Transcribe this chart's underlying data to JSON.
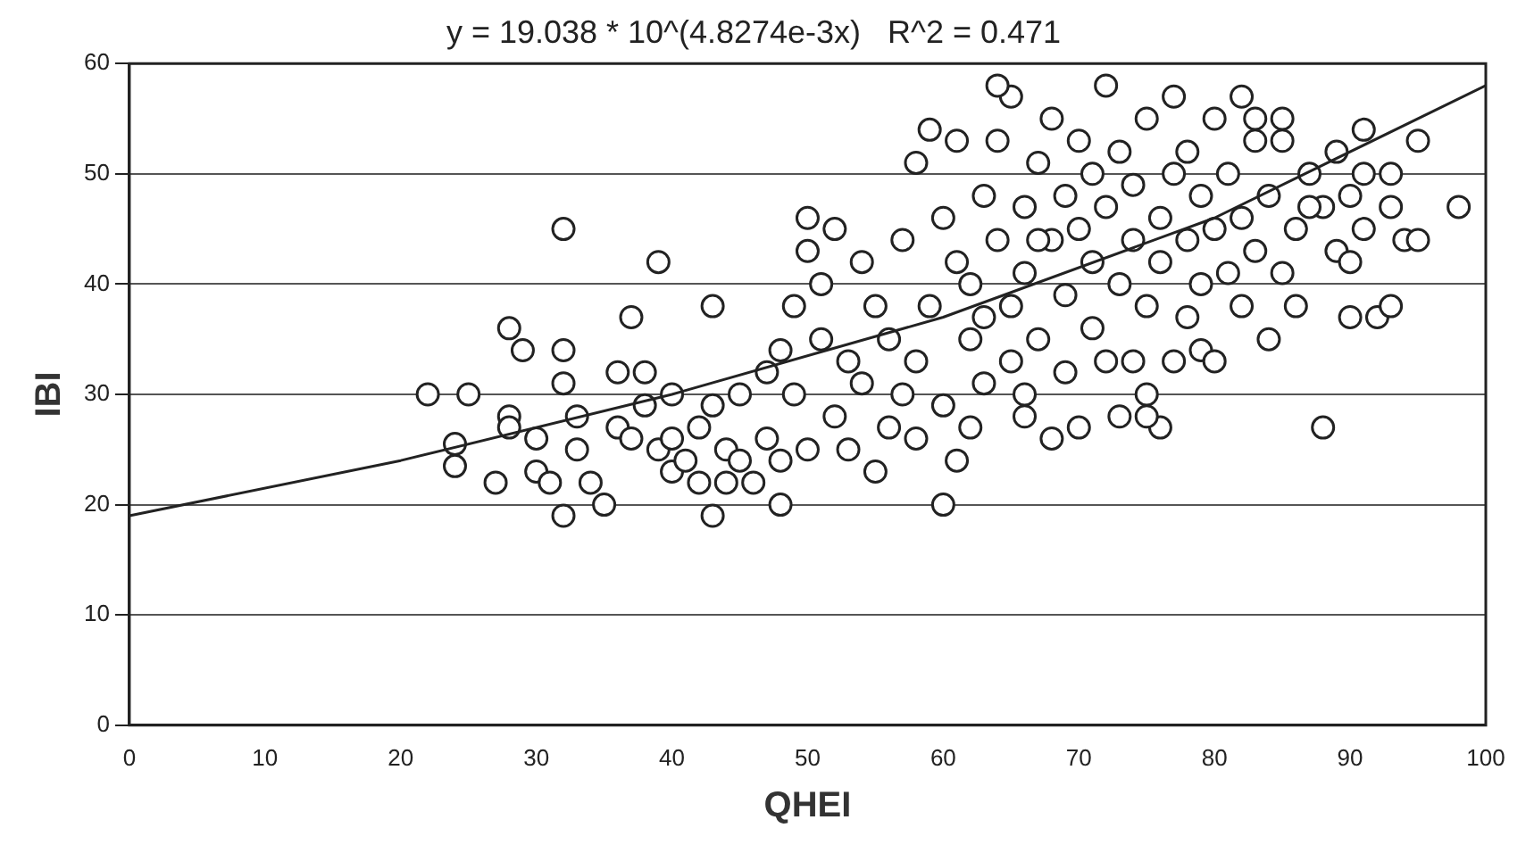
{
  "chart_data": {
    "type": "scatter",
    "title": "y = 19.038 * 10^(4.8274e-3x)   R^2 = 0.471",
    "xlabel": "QHEI",
    "ylabel": "IBI",
    "xlim": [
      0,
      100
    ],
    "ylim": [
      0,
      60
    ],
    "xticks": [
      0,
      10,
      20,
      30,
      40,
      50,
      60,
      70,
      80,
      90,
      100
    ],
    "yticks": [
      0,
      10,
      20,
      30,
      40,
      50,
      60
    ],
    "grid": "y",
    "legend": false,
    "series": [
      {
        "type": "scatter",
        "marker": "circle",
        "color": "#222222",
        "x": [
          22,
          25,
          24,
          24,
          27,
          28,
          28,
          29,
          28,
          30,
          30,
          31,
          32,
          32,
          32,
          32,
          33,
          33,
          34,
          35,
          36,
          36,
          37,
          37,
          38,
          38,
          39,
          39,
          40,
          40,
          40,
          41,
          42,
          42,
          43,
          43,
          43,
          44,
          44,
          45,
          45,
          46,
          47,
          47,
          48,
          48,
          48,
          49,
          49,
          50,
          50,
          50,
          51,
          51,
          52,
          52,
          53,
          53,
          54,
          54,
          55,
          55,
          56,
          56,
          57,
          57,
          58,
          58,
          58,
          59,
          59,
          60,
          60,
          60,
          61,
          61,
          61,
          62,
          62,
          62,
          63,
          63,
          63,
          64,
          64,
          65,
          65,
          65,
          66,
          66,
          66,
          67,
          67,
          68,
          68,
          68,
          69,
          69,
          69,
          70,
          70,
          70,
          71,
          71,
          71,
          72,
          72,
          72,
          73,
          73,
          73,
          74,
          74,
          74,
          75,
          75,
          75,
          76,
          76,
          76,
          77,
          77,
          77,
          78,
          78,
          78,
          79,
          79,
          79,
          80,
          80,
          80,
          81,
          81,
          82,
          82,
          82,
          83,
          83,
          84,
          84,
          85,
          85,
          86,
          86,
          87,
          88,
          88,
          89,
          89,
          90,
          90,
          91,
          91,
          92,
          93,
          93,
          94,
          95,
          95,
          98,
          90,
          93,
          91,
          64,
          83,
          85,
          87,
          75,
          66,
          67
        ],
        "values": [
          30,
          30,
          25.5,
          23.5,
          22,
          28,
          36,
          34,
          27,
          26,
          23,
          22,
          19,
          45,
          34,
          31,
          28,
          25,
          22,
          20,
          32,
          27,
          26,
          37,
          32,
          29,
          42,
          25,
          30,
          26,
          23,
          24,
          22,
          27,
          38,
          29,
          19,
          25,
          22,
          24,
          30,
          22,
          26,
          32,
          20,
          34,
          24,
          38,
          30,
          25,
          46,
          43,
          40,
          35,
          28,
          45,
          33,
          25,
          31,
          42,
          23,
          38,
          35,
          27,
          30,
          44,
          33,
          51,
          26,
          38,
          54,
          46,
          29,
          20,
          24,
          42,
          53,
          35,
          40,
          27,
          48,
          31,
          37,
          44,
          53,
          33,
          57,
          38,
          47,
          28,
          41,
          51,
          35,
          44,
          26,
          55,
          39,
          48,
          32,
          45,
          53,
          27,
          36,
          50,
          42,
          47,
          33,
          58,
          40,
          28,
          52,
          44,
          33,
          49,
          55,
          38,
          30,
          27,
          46,
          42,
          50,
          33,
          57,
          44,
          37,
          52,
          40,
          48,
          34,
          55,
          45,
          33,
          41,
          50,
          38,
          46,
          57,
          43,
          53,
          35,
          48,
          41,
          55,
          45,
          38,
          50,
          27,
          47,
          52,
          43,
          37,
          48,
          54,
          45,
          37,
          50,
          38,
          44,
          53,
          44,
          47,
          42,
          47,
          50,
          58,
          55,
          53,
          47,
          28,
          30,
          44
        ]
      },
      {
        "type": "line",
        "marker": "none",
        "color": "#222222",
        "x": [
          0,
          20,
          40,
          60,
          80,
          100
        ],
        "values": [
          19,
          24,
          30,
          37,
          46,
          58
        ]
      }
    ]
  }
}
